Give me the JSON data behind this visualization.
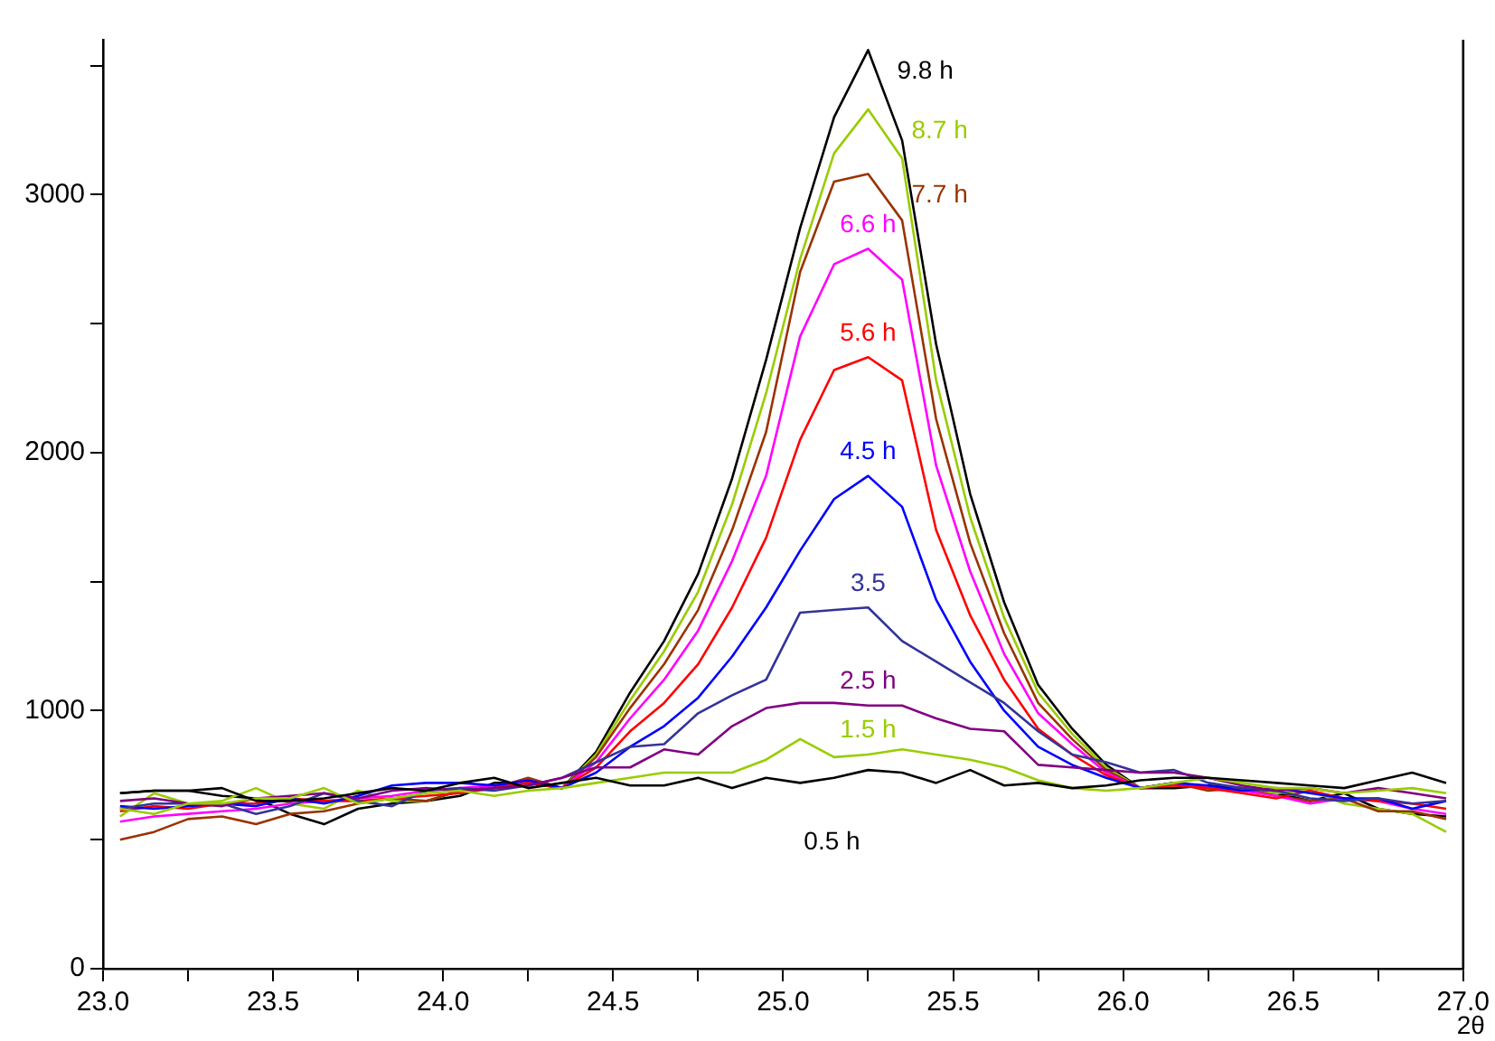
{
  "chart_data": {
    "type": "line",
    "xlabel": "2θ",
    "x": [
      23.05,
      23.15,
      23.25,
      23.35,
      23.45,
      23.55,
      23.65,
      23.75,
      23.85,
      23.95,
      24.05,
      24.15,
      24.25,
      24.35,
      24.45,
      24.55,
      24.65,
      24.75,
      24.85,
      24.95,
      25.05,
      25.15,
      25.25,
      25.35,
      25.45,
      25.55,
      25.65,
      25.75,
      25.85,
      25.95,
      26.05,
      26.15,
      26.25,
      26.35,
      26.45,
      26.55,
      26.65,
      26.75,
      26.85,
      26.95
    ],
    "series": [
      {
        "name": "0.5 h",
        "color": "#000000",
        "values": [
          680,
          690,
          690,
          700,
          650,
          650,
          660,
          680,
          700,
          690,
          720,
          740,
          700,
          720,
          740,
          710,
          710,
          740,
          700,
          740,
          720,
          740,
          770,
          760,
          720,
          770,
          710,
          720,
          700,
          710,
          730,
          740,
          740,
          730,
          720,
          710,
          700,
          730,
          760,
          720
        ]
      },
      {
        "name": "1.5 h",
        "color": "#99cc00",
        "values": [
          620,
          600,
          640,
          640,
          660,
          660,
          700,
          640,
          660,
          680,
          690,
          670,
          690,
          700,
          720,
          740,
          760,
          760,
          760,
          810,
          890,
          820,
          830,
          850,
          830,
          810,
          780,
          730,
          700,
          690,
          700,
          720,
          740,
          720,
          700,
          700,
          680,
          690,
          700,
          680
        ]
      },
      {
        "name": "2.5 h",
        "color": "#800080",
        "values": [
          650,
          660,
          640,
          630,
          660,
          670,
          680,
          660,
          690,
          700,
          690,
          700,
          710,
          740,
          780,
          780,
          850,
          830,
          940,
          1010,
          1030,
          1030,
          1020,
          1020,
          970,
          930,
          920,
          790,
          780,
          770,
          760,
          760,
          740,
          710,
          690,
          700,
          680,
          700,
          680,
          660
        ]
      },
      {
        "name": "3.5",
        "color": "#333399",
        "values": [
          620,
          640,
          640,
          640,
          600,
          630,
          680,
          650,
          630,
          690,
          700,
          690,
          710,
          740,
          800,
          860,
          870,
          990,
          1060,
          1120,
          1380,
          1390,
          1400,
          1270,
          1190,
          1110,
          1030,
          920,
          830,
          800,
          760,
          770,
          720,
          700,
          690,
          660,
          650,
          660,
          640,
          650
        ]
      },
      {
        "name": "4.5 h",
        "color": "#0000ff",
        "values": [
          630,
          620,
          630,
          640,
          630,
          660,
          640,
          670,
          710,
          720,
          720,
          710,
          730,
          700,
          760,
          860,
          940,
          1050,
          1210,
          1400,
          1620,
          1820,
          1910,
          1790,
          1430,
          1190,
          1000,
          860,
          790,
          740,
          700,
          720,
          710,
          690,
          700,
          680,
          660,
          660,
          620,
          650
        ]
      },
      {
        "name": "5.6 h",
        "color": "#ff0000",
        "values": [
          610,
          630,
          620,
          640,
          640,
          660,
          650,
          650,
          660,
          670,
          680,
          700,
          720,
          700,
          780,
          920,
          1030,
          1180,
          1400,
          1670,
          2050,
          2320,
          2370,
          2280,
          1700,
          1370,
          1120,
          930,
          830,
          750,
          700,
          710,
          700,
          680,
          660,
          690,
          660,
          650,
          640,
          620
        ]
      },
      {
        "name": "6.6 h",
        "color": "#ff00ff",
        "values": [
          570,
          590,
          600,
          610,
          620,
          640,
          650,
          660,
          670,
          690,
          700,
          710,
          730,
          700,
          800,
          970,
          1120,
          1310,
          1580,
          1910,
          2450,
          2730,
          2790,
          2670,
          1950,
          1540,
          1220,
          990,
          870,
          760,
          700,
          720,
          700,
          690,
          670,
          640,
          660,
          650,
          620,
          600
        ]
      },
      {
        "name": "7.7 h",
        "color": "#993300",
        "values": [
          500,
          530,
          580,
          590,
          560,
          600,
          610,
          640,
          660,
          650,
          690,
          700,
          740,
          700,
          820,
          1010,
          1180,
          1390,
          1700,
          2080,
          2700,
          3050,
          3080,
          2900,
          2130,
          1650,
          1300,
          1030,
          890,
          770,
          700,
          720,
          690,
          700,
          670,
          650,
          660,
          610,
          610,
          580
        ]
      },
      {
        "name": "8.7 h",
        "color": "#99cc00",
        "values": [
          590,
          680,
          640,
          650,
          700,
          640,
          620,
          690,
          650,
          650,
          690,
          700,
          730,
          700,
          830,
          1040,
          1230,
          1460,
          1800,
          2230,
          2750,
          3160,
          3330,
          3140,
          2280,
          1750,
          1360,
          1070,
          910,
          780,
          700,
          720,
          700,
          690,
          680,
          690,
          640,
          620,
          600,
          530
        ]
      },
      {
        "name": "9.8 h",
        "color": "#000000",
        "values": [
          680,
          690,
          690,
          670,
          660,
          600,
          560,
          620,
          640,
          650,
          670,
          720,
          720,
          700,
          840,
          1070,
          1270,
          1530,
          1900,
          2360,
          2870,
          3300,
          3560,
          3210,
          2420,
          1840,
          1420,
          1100,
          930,
          790,
          700,
          700,
          710,
          700,
          680,
          650,
          680,
          620,
          600,
          590
        ]
      }
    ],
    "xlim": [
      23.0,
      27.0
    ],
    "xticks": [
      {
        "value": 23,
        "label": "23.0"
      },
      {
        "value": 23.25,
        "label": null
      },
      {
        "value": 23.5,
        "label": "23.5"
      },
      {
        "value": 23.75,
        "label": null
      },
      {
        "value": 24,
        "label": "24.0"
      },
      {
        "value": 24.25,
        "label": null
      },
      {
        "value": 24.5,
        "label": "24.5"
      },
      {
        "value": 24.75,
        "label": null
      },
      {
        "value": 25,
        "label": "25.0"
      },
      {
        "value": 25.25,
        "label": null
      },
      {
        "value": 25.5,
        "label": "25.5"
      },
      {
        "value": 25.75,
        "label": null
      },
      {
        "value": 26,
        "label": "26.0"
      },
      {
        "value": 26.25,
        "label": null
      },
      {
        "value": 26.5,
        "label": "26.5"
      },
      {
        "value": 26.75,
        "label": null
      },
      {
        "value": 27,
        "label": "27.0"
      }
    ],
    "ylim": [
      0,
      3600
    ],
    "yticks": [
      0,
      {
        "value": 500,
        "label": null
      },
      1000,
      {
        "value": 1500,
        "label": null
      },
      2000,
      {
        "value": 2500,
        "label": null
      },
      3000,
      {
        "value": 3500,
        "label": null
      }
    ],
    "grid": false,
    "legend": false,
    "marker": "none",
    "line_style": "solid"
  }
}
